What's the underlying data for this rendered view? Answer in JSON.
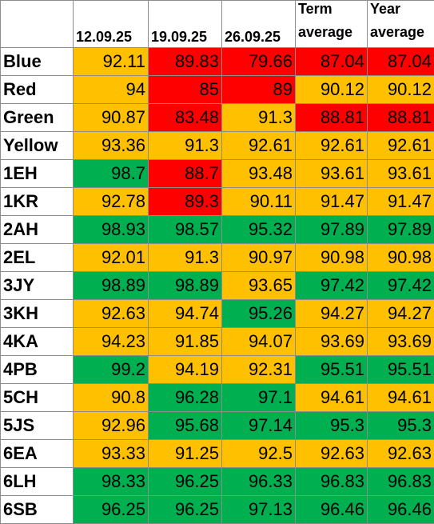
{
  "colors": {
    "green": "#00b050",
    "amber": "#ffc000",
    "red": "#ff0000"
  },
  "headers": {
    "dates": [
      "12.09.25",
      "19.09.25",
      "26.09.25"
    ],
    "term_average": [
      "Term",
      "average"
    ],
    "year_average": [
      "Year",
      "average"
    ]
  },
  "rows": [
    {
      "name": "Blue",
      "values": [
        "92.11",
        "89.83",
        "79.66",
        "87.04",
        "87.04"
      ],
      "colors": [
        "amber",
        "red",
        "red",
        "red",
        "red"
      ]
    },
    {
      "name": "Red",
      "values": [
        "94",
        "85",
        "89",
        "90.12",
        "90.12"
      ],
      "colors": [
        "amber",
        "red",
        "red",
        "amber",
        "amber"
      ]
    },
    {
      "name": "Green",
      "values": [
        "90.87",
        "83.48",
        "91.3",
        "88.81",
        "88.81"
      ],
      "colors": [
        "amber",
        "red",
        "amber",
        "red",
        "red"
      ]
    },
    {
      "name": "Yellow",
      "values": [
        "93.36",
        "91.3",
        "92.61",
        "92.61",
        "92.61"
      ],
      "colors": [
        "amber",
        "amber",
        "amber",
        "amber",
        "amber"
      ]
    },
    {
      "name": "1EH",
      "values": [
        "98.7",
        "88.7",
        "93.48",
        "93.61",
        "93.61"
      ],
      "colors": [
        "green",
        "red",
        "amber",
        "amber",
        "amber"
      ]
    },
    {
      "name": "1KR",
      "values": [
        "92.78",
        "89.3",
        "90.11",
        "91.47",
        "91.47"
      ],
      "colors": [
        "amber",
        "red",
        "amber",
        "amber",
        "amber"
      ]
    },
    {
      "name": "2AH",
      "values": [
        "98.93",
        "98.57",
        "95.32",
        "97.89",
        "97.89"
      ],
      "colors": [
        "green",
        "green",
        "green",
        "green",
        "green"
      ]
    },
    {
      "name": "2EL",
      "values": [
        "92.01",
        "91.3",
        "90.97",
        "90.98",
        "90.98"
      ],
      "colors": [
        "amber",
        "amber",
        "amber",
        "amber",
        "amber"
      ]
    },
    {
      "name": "3JY",
      "values": [
        "98.89",
        "98.89",
        "93.65",
        "97.42",
        "97.42"
      ],
      "colors": [
        "green",
        "green",
        "amber",
        "green",
        "green"
      ]
    },
    {
      "name": "3KH",
      "values": [
        "92.63",
        "94.74",
        "95.26",
        "94.27",
        "94.27"
      ],
      "colors": [
        "amber",
        "amber",
        "green",
        "amber",
        "amber"
      ]
    },
    {
      "name": "4KA",
      "values": [
        "94.23",
        "91.85",
        "94.07",
        "93.69",
        "93.69"
      ],
      "colors": [
        "amber",
        "amber",
        "amber",
        "amber",
        "amber"
      ]
    },
    {
      "name": "4PB",
      "values": [
        "99.2",
        "94.19",
        "92.31",
        "95.51",
        "95.51"
      ],
      "colors": [
        "green",
        "amber",
        "amber",
        "green",
        "green"
      ]
    },
    {
      "name": "5CH",
      "values": [
        "90.8",
        "96.28",
        "97.1",
        "94.61",
        "94.61"
      ],
      "colors": [
        "amber",
        "green",
        "green",
        "amber",
        "amber"
      ]
    },
    {
      "name": "5JS",
      "values": [
        "92.96",
        "95.68",
        "97.14",
        "95.3",
        "95.3"
      ],
      "colors": [
        "amber",
        "green",
        "green",
        "green",
        "green"
      ]
    },
    {
      "name": "6EA",
      "values": [
        "93.33",
        "91.25",
        "92.5",
        "92.63",
        "92.63"
      ],
      "colors": [
        "amber",
        "amber",
        "amber",
        "amber",
        "amber"
      ]
    },
    {
      "name": "6LH",
      "values": [
        "98.33",
        "96.25",
        "96.33",
        "96.83",
        "96.83"
      ],
      "colors": [
        "green",
        "green",
        "green",
        "green",
        "green"
      ]
    },
    {
      "name": "6SB",
      "values": [
        "96.25",
        "96.25",
        "97.13",
        "96.46",
        "96.46"
      ],
      "colors": [
        "green",
        "green",
        "green",
        "green",
        "green"
      ]
    }
  ]
}
